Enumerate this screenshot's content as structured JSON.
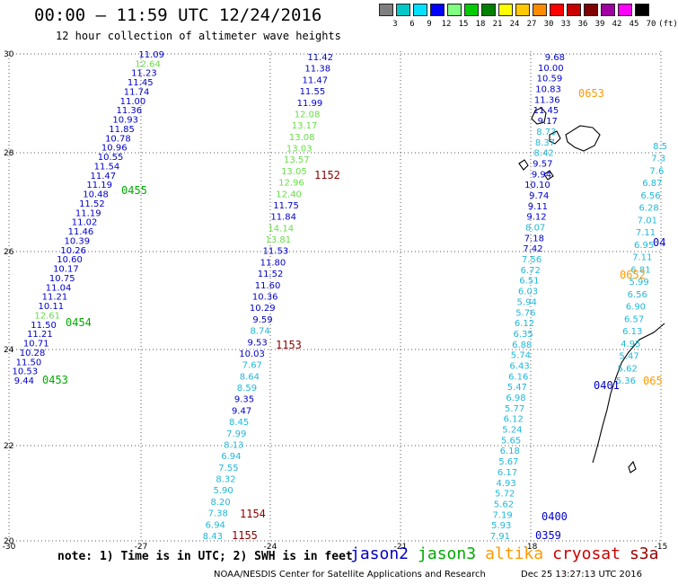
{
  "header": {
    "title": "00:00 – 11:59 UTC 12/24/2016",
    "subtitle": "12 hour collection of altimeter wave heights"
  },
  "scale": {
    "colors": [
      "#7f7f7f",
      "#00c8c8",
      "#00e1ff",
      "#0000ff",
      "#80ff80",
      "#00cc00",
      "#008000",
      "#ffff00",
      "#ffc800",
      "#ff8c00",
      "#ff0000",
      "#c80000",
      "#800000",
      "#a000a0",
      "#ff00ff",
      "#000000"
    ],
    "labels": [
      "3",
      "6",
      "9",
      "12",
      "15",
      "18",
      "21",
      "24",
      "27",
      "30",
      "33",
      "36",
      "39",
      "42",
      "45",
      "70",
      "(ft)"
    ]
  },
  "axes": {
    "x_labels": [
      "-30",
      "-27",
      "-24",
      "-21",
      "-18",
      "-15"
    ],
    "y_labels": [
      "30",
      "28",
      "26",
      "24",
      "22",
      "20"
    ]
  },
  "colors": {
    "jason2": "#0000cc",
    "jason3": "#00aa00",
    "altika": "#ff9900",
    "cryosat": "#cc0000",
    "s3a": "#990000",
    "light_blue": "#20b8d8",
    "light_green": "#66dd44",
    "dark_red": "#8b0000"
  },
  "tracks": {
    "track_a": {
      "values": [
        "11.09",
        "12.64",
        "11.23",
        "11.45",
        "11.74",
        "11.00",
        "11.36",
        "10.93",
        "11.85",
        "10.78",
        "10.96",
        "10.55",
        "11.54",
        "11.47",
        "11.19",
        "10.48",
        "11.52",
        "11.19",
        "11.02",
        "11.46",
        "10.39",
        "10.26",
        "10.60",
        "10.17",
        "10.75",
        "11.04",
        "11.21",
        "10.11",
        "12.61",
        "11.50",
        "11.21",
        "10.71",
        "10.28",
        "11.50",
        "10.53",
        "9.44"
      ],
      "colors": [
        "jason2",
        "light_green",
        "jason2",
        "jason2",
        "jason2",
        "jason2",
        "jason2",
        "jason2",
        "jason2",
        "jason2",
        "jason2",
        "jason2",
        "jason2",
        "jason2",
        "jason2",
        "jason2",
        "jason2",
        "jason2",
        "jason2",
        "jason2",
        "jason2",
        "jason2",
        "jason2",
        "jason2",
        "jason2",
        "jason2",
        "jason2",
        "jason2",
        "light_green",
        "jason2",
        "jason2",
        "jason2",
        "jason2",
        "jason2",
        "jason2",
        "jason2"
      ]
    },
    "track_b": {
      "values": [
        "11.42",
        "11.38",
        "11.47",
        "11.55",
        "11.99",
        "12.08",
        "13.17",
        "13.08",
        "13.03",
        "13.57",
        "13.05",
        "12.96",
        "12.40",
        "11.75",
        "11.84",
        "14.14",
        "13.81",
        "11.53",
        "11.80",
        "11.52",
        "11.60",
        "10.36",
        "10.29",
        "9.59",
        "8.74",
        "9.53",
        "10.03",
        "7.67",
        "8.64",
        "8.59",
        "9.35",
        "9.47",
        "8.45",
        "7.99",
        "8.13",
        "6.94",
        "7.55",
        "8.32",
        "5.90",
        "8.20",
        "7.38",
        "6.94",
        "8.43"
      ],
      "colors": [
        "jason2",
        "jason2",
        "jason2",
        "jason2",
        "jason2",
        "light_green",
        "light_green",
        "light_green",
        "light_green",
        "light_green",
        "light_green",
        "light_green",
        "light_green",
        "jason2",
        "jason2",
        "light_green",
        "light_green",
        "jason2",
        "jason2",
        "jason2",
        "jason2",
        "jason2",
        "jason2",
        "jason2",
        "light_blue",
        "jason2",
        "jason2",
        "light_blue",
        "light_blue",
        "light_blue",
        "jason2",
        "jason2",
        "light_blue",
        "light_blue",
        "light_blue",
        "light_blue",
        "light_blue",
        "light_blue",
        "light_blue",
        "light_blue",
        "light_blue",
        "light_blue",
        "light_blue"
      ]
    },
    "track_c": {
      "values": [
        "9.68",
        "10.00",
        "10.59",
        "10.83",
        "11.36",
        "11.45",
        "9.17",
        "8.73",
        "8.37",
        "8.42",
        "9.57",
        "9.94",
        "10.10",
        "9.74",
        "9.11",
        "9.12",
        "8.07",
        "7.18",
        "7.42",
        "7.56",
        "6.72",
        "6.51",
        "6.03",
        "5.94",
        "5.76",
        "6.12",
        "6.35",
        "6.88",
        "5.74",
        "6.43",
        "6.16",
        "5.47",
        "6.98",
        "5.77",
        "6.12",
        "5.24",
        "5.65",
        "6.18",
        "5.67",
        "6.17",
        "4.93",
        "5.72",
        "5.62",
        "7.19",
        "5.93",
        "7.91"
      ],
      "colors": [
        "jason2",
        "jason2",
        "jason2",
        "jason2",
        "jason2",
        "jason2",
        "jason2",
        "light_blue",
        "light_blue",
        "light_blue",
        "jason2",
        "jason2",
        "jason2",
        "jason2",
        "jason2",
        "jason2",
        "light_blue",
        "jason2",
        "jason2",
        "light_blue",
        "light_blue",
        "light_blue",
        "light_blue",
        "light_blue",
        "light_blue",
        "light_blue",
        "light_blue",
        "light_blue",
        "light_blue",
        "light_blue",
        "light_blue",
        "light_blue",
        "light_blue",
        "light_blue",
        "light_blue",
        "light_blue",
        "light_blue",
        "light_blue",
        "light_blue",
        "light_blue",
        "light_blue",
        "light_blue",
        "light_blue",
        "light_blue",
        "light_blue",
        "light_blue"
      ]
    },
    "track_d": {
      "values": [
        "8.5",
        "7.3",
        "7.6",
        "6.87",
        "6.56",
        "6.28",
        "7.01",
        "7.11",
        "6.95",
        "7.11",
        "6.81",
        "5.99",
        "6.56",
        "6.90",
        "6.57",
        "6.13",
        "4.95",
        "5.47",
        "5.62",
        "5.36"
      ],
      "colors": [
        "light_blue",
        "light_blue",
        "light_blue",
        "light_blue",
        "light_blue",
        "light_blue",
        "light_blue",
        "light_blue",
        "light_blue",
        "light_blue",
        "light_blue",
        "light_blue",
        "light_blue",
        "light_blue",
        "light_blue",
        "light_blue",
        "light_blue",
        "light_blue",
        "light_blue",
        "light_blue"
      ]
    }
  },
  "time_labels": [
    {
      "text": "0653",
      "color": "altika"
    },
    {
      "text": "0455",
      "color": "jason3"
    },
    {
      "text": "1152",
      "color": "dark_red"
    },
    {
      "text": "04",
      "color": "jason2"
    },
    {
      "text": "0652",
      "color": "altika"
    },
    {
      "text": "0454",
      "color": "jason3"
    },
    {
      "text": "1153",
      "color": "dark_red"
    },
    {
      "text": "0453",
      "color": "jason3"
    },
    {
      "text": "0401",
      "color": "jason2"
    },
    {
      "text": "065",
      "color": "altika"
    },
    {
      "text": "1154",
      "color": "dark_red"
    },
    {
      "text": "1155",
      "color": "dark_red"
    },
    {
      "text": "0400",
      "color": "jason2"
    },
    {
      "text": "0359",
      "color": "jason2"
    }
  ],
  "footer": {
    "note": "note: 1) Time is in UTC; 2) SWH is in feet",
    "legend": [
      {
        "label": "jason2",
        "color": "#0000cc"
      },
      {
        "label": "jason3",
        "color": "#00aa00"
      },
      {
        "label": "altika",
        "color": "#ff9900"
      },
      {
        "label": "cryosat",
        "color": "#cc0000"
      },
      {
        "label": "s3a",
        "color": "#990000"
      }
    ],
    "credit": "NOAA/NESDIS Center for Satellite Applications and Research",
    "timestamp": "Dec 25 13:27:13 UTC 2016"
  }
}
